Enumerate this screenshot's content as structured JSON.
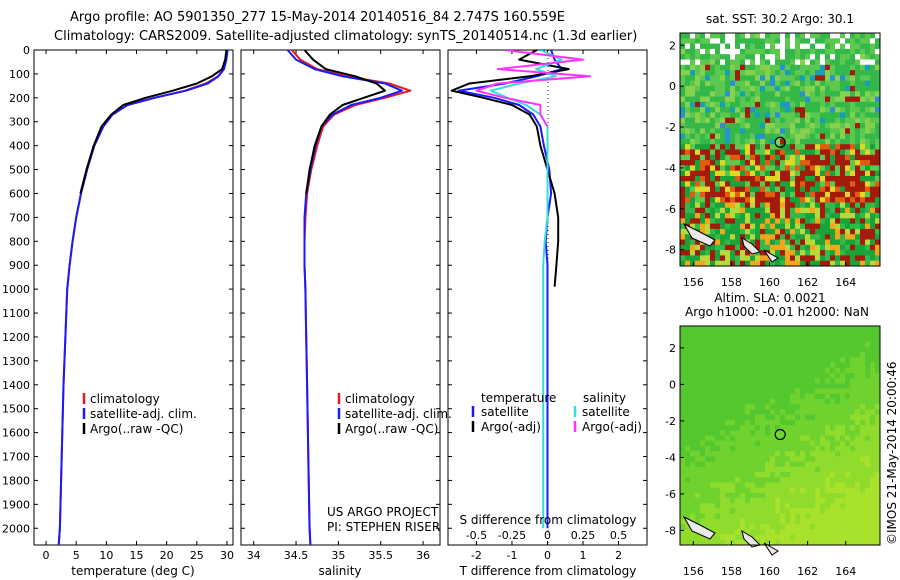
{
  "title_line1": "Argo profile: AO 5901350_277 15-May-2014 20140516_84 2.747S 160.559E",
  "title_line2": "Climatology: CARS2009. Satellite-adjusted climatology: synTS_20140514.nc (1.3d earlier)",
  "map_sst_title": "sat. SST: 30.2 Argo: 30.1",
  "map_sla_title1": "Altim. SLA: 0.0021",
  "map_sla_title2": "Argo h1000: -0.01 h2000: NaN",
  "vertical_stamp": "©IMOS 21-May-2014 20:00:46",
  "project_line1": "US ARGO PROJECT",
  "project_line2": "PI: STEPHEN RISER",
  "colors": {
    "climatology": "#e41a1c",
    "satellite": "#1a1aff",
    "argo": "#000000",
    "sal_sat": "#33dddd",
    "sal_argo": "#ff33ff"
  },
  "chart_data": [
    {
      "type": "line",
      "xlabel": "temperature (deg C)",
      "xticks": [
        "0",
        "5",
        "10",
        "15",
        "20",
        "25",
        "30"
      ],
      "yticks": [
        "0",
        "100",
        "200",
        "300",
        "400",
        "500",
        "600",
        "700",
        "800",
        "900",
        "1000",
        "1100",
        "1200",
        "1300",
        "1400",
        "1500",
        "1600",
        "1700",
        "1800",
        "1900",
        "2000"
      ],
      "xlim": [
        -2,
        31
      ],
      "ylim": [
        2070,
        0
      ],
      "legend": [
        "climatology",
        "satellite-adj. clim.",
        "Argo(..raw -QC)"
      ],
      "series": [
        {
          "name": "climatology",
          "x": [
            30,
            29.8,
            29.4,
            28.5,
            26.5,
            23,
            18,
            13.5,
            11,
            9.5,
            8,
            6.8,
            5.8,
            5.0,
            4.4,
            3.9,
            3.5,
            3.2,
            2.9,
            2.7,
            2.5,
            2.3,
            2.1
          ],
          "y": [
            0,
            40,
            80,
            110,
            140,
            170,
            200,
            230,
            270,
            320,
            400,
            500,
            600,
            700,
            800,
            900,
            1000,
            1200,
            1400,
            1600,
            1800,
            2000,
            2070
          ]
        },
        {
          "name": "satellite-adj. clim.",
          "x": [
            30.1,
            29.9,
            29.5,
            28.6,
            26.8,
            23.2,
            18,
            13.5,
            11,
            9.5,
            8,
            6.8,
            5.8,
            5.0,
            4.4,
            3.9,
            3.5,
            3.2,
            2.9,
            2.7,
            2.5,
            2.3,
            2.1
          ],
          "y": [
            0,
            40,
            80,
            110,
            140,
            170,
            200,
            230,
            270,
            320,
            400,
            500,
            600,
            700,
            800,
            900,
            1000,
            1200,
            1400,
            1600,
            1800,
            2000,
            2070
          ]
        },
        {
          "name": "Argo(..raw -QC)",
          "x": [
            29.9,
            29.7,
            29.2,
            27.5,
            25,
            21,
            16.5,
            12.8,
            10.8,
            9.2,
            7.9,
            6.7,
            5.7
          ],
          "y": [
            0,
            40,
            80,
            110,
            140,
            170,
            200,
            230,
            270,
            320,
            400,
            500,
            600
          ]
        }
      ]
    },
    {
      "type": "line",
      "xlabel": "salinity",
      "xticks": [
        "34",
        "34.5",
        "35",
        "35.5",
        "36"
      ],
      "xlim": [
        33.85,
        36.2
      ],
      "ylim": [
        2070,
        0
      ],
      "legend": [
        "climatology",
        "satellite-adj. clim.",
        "Argo(..raw -QC)"
      ],
      "series": [
        {
          "name": "climatology",
          "x": [
            34.45,
            34.55,
            34.75,
            35.1,
            35.6,
            35.85,
            35.55,
            35.2,
            34.95,
            34.82,
            34.75,
            34.68,
            34.63,
            34.61,
            34.6,
            34.6,
            34.61,
            34.62,
            34.63,
            34.64,
            34.65,
            34.66,
            34.67
          ],
          "y": [
            0,
            40,
            80,
            110,
            140,
            170,
            200,
            230,
            270,
            320,
            400,
            500,
            600,
            700,
            800,
            900,
            1000,
            1200,
            1400,
            1600,
            1800,
            2000,
            2070
          ]
        },
        {
          "name": "satellite-adj. clim.",
          "x": [
            34.4,
            34.5,
            34.72,
            35.05,
            35.55,
            35.75,
            35.5,
            35.15,
            34.93,
            34.8,
            34.73,
            34.67,
            34.62,
            34.6,
            34.6,
            34.6,
            34.61,
            34.62,
            34.63,
            34.64,
            34.65,
            34.66,
            34.67
          ],
          "y": [
            0,
            40,
            80,
            110,
            140,
            170,
            200,
            230,
            270,
            320,
            400,
            500,
            600,
            700,
            800,
            900,
            1000,
            1200,
            1400,
            1600,
            1800,
            2000,
            2070
          ]
        },
        {
          "name": "Argo(..raw -QC)",
          "x": [
            34.6,
            34.7,
            34.85,
            35.2,
            35.45,
            35.55,
            35.3,
            35.05,
            34.9,
            34.8,
            34.72,
            34.66,
            34.62
          ],
          "y": [
            0,
            40,
            80,
            110,
            140,
            170,
            200,
            230,
            270,
            320,
            400,
            500,
            600
          ]
        }
      ]
    },
    {
      "type": "line",
      "xlabel": "T difference from climatology",
      "xlabel_top": "S difference from climatology",
      "xticks": [
        "-2",
        "-1",
        "0",
        "1",
        "2"
      ],
      "xticks_top": [
        "-0.5",
        "-0.25",
        "0",
        "0.25",
        "0.5"
      ],
      "xlim": [
        -2.8,
        2.8
      ],
      "ylim": [
        2070,
        0
      ],
      "legend_temperature_title": "temperature",
      "legend_salinity_title": "salinity",
      "legend": [
        "satellite",
        "Argo(-adj)",
        "satellite",
        "Argo(-adj)"
      ],
      "series": [
        {
          "name": "satellite",
          "x": [
            0.1,
            0.2,
            0.4,
            -0.3,
            -1.2,
            -2.5,
            -1.5,
            -0.8,
            -0.4,
            -0.2,
            -0.1,
            0.05,
            0.1,
            0.0,
            -0.05,
            0.0,
            0.0,
            0.0,
            0.0,
            0.0,
            0.0,
            0.0
          ],
          "y": [
            0,
            40,
            80,
            110,
            140,
            170,
            200,
            230,
            270,
            320,
            400,
            500,
            600,
            700,
            800,
            900,
            1000,
            1200,
            1400,
            1600,
            1800,
            2000
          ]
        },
        {
          "name": "Argo(-adj)",
          "x": [
            -0.3,
            -0.8,
            0.6,
            -0.5,
            -2.2,
            -2.7,
            -1.8,
            -1.0,
            -0.5,
            -0.3,
            -0.2,
            0.0,
            0.2,
            0.3,
            0.3,
            0.25,
            0.2
          ],
          "y": [
            0,
            40,
            80,
            110,
            140,
            170,
            200,
            230,
            270,
            320,
            400,
            500,
            600,
            700,
            800,
            900,
            990
          ]
        },
        {
          "name": "satellite",
          "x": [
            -0.05,
            0.1,
            -0.08,
            0.06,
            -0.2,
            -0.4,
            -0.28,
            -0.15,
            -0.05,
            0.0,
            0.0,
            0.0,
            0.0,
            0.0,
            -0.02,
            -0.03,
            -0.03,
            -0.03,
            -0.03,
            -0.03,
            -0.03,
            -0.03
          ],
          "y": [
            0,
            40,
            80,
            110,
            140,
            170,
            200,
            230,
            270,
            320,
            400,
            500,
            600,
            700,
            800,
            900,
            1000,
            1200,
            1400,
            1600,
            1800,
            2000
          ]
        },
        {
          "name": "Argo(-adj)",
          "x": [
            -0.3,
            0.25,
            -0.35,
            0.3,
            -0.35,
            -0.5,
            -0.3,
            -0.05,
            -0.05,
            0.0
          ],
          "y": [
            0,
            40,
            80,
            110,
            140,
            170,
            200,
            230,
            270,
            320
          ]
        }
      ]
    },
    {
      "type": "heatmap",
      "title": "sat. SST: 30.2 Argo: 30.1",
      "xticks": [
        "156",
        "158",
        "160",
        "162",
        "164"
      ],
      "yticks": [
        "2",
        "0",
        "-2",
        "-4",
        "-6",
        "-8"
      ],
      "xlim": [
        155.3,
        165.8
      ],
      "ylim": [
        -8.8,
        2.6
      ],
      "argo_position": {
        "lon": 160.559,
        "lat": -2.747
      }
    },
    {
      "type": "heatmap",
      "title": "Altim. SLA: 0.0021",
      "xticks": [
        "156",
        "158",
        "160",
        "162",
        "164"
      ],
      "yticks": [
        "2",
        "0",
        "-2",
        "-4",
        "-6",
        "-8"
      ],
      "xlim": [
        155.3,
        165.8
      ],
      "ylim": [
        -8.8,
        3.2
      ],
      "argo_position": {
        "lon": 160.559,
        "lat": -2.747
      }
    }
  ]
}
